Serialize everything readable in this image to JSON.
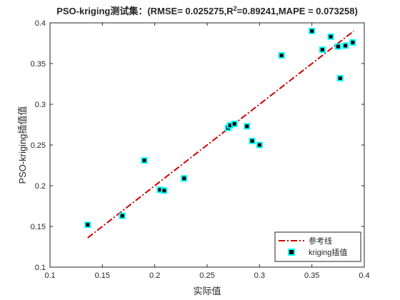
{
  "chart_data": {
    "type": "scatter",
    "title_prefix": "PSO-kriging测试集：(RMSE= 0.025275,R",
    "title_sup": "2",
    "title_suffix": "=0.89241,MAPE  = 0.073258)",
    "xlabel": "实际值",
    "ylabel": "PSO-kriging插值值",
    "xlim": [
      0.1,
      0.4
    ],
    "ylim": [
      0.1,
      0.4
    ],
    "xticks": [
      "0.1",
      "0.15",
      "0.2",
      "0.25",
      "0.3",
      "0.35",
      "0.4"
    ],
    "yticks": [
      "0.1",
      "0.15",
      "0.2",
      "0.25",
      "0.3",
      "0.35",
      "0.4"
    ],
    "grid": false,
    "legend_position": "bottom-right",
    "reference_line": {
      "name": "参考线",
      "color": "#cc0000",
      "style": "dash-dot",
      "x": [
        0.136,
        0.39
      ],
      "y": [
        0.136,
        0.39
      ]
    },
    "series": [
      {
        "name": "kriging插值",
        "marker_fill": "#000000",
        "marker_edge": "#00ffff",
        "points": [
          [
            0.136,
            0.152
          ],
          [
            0.169,
            0.163
          ],
          [
            0.19,
            0.231
          ],
          [
            0.205,
            0.195
          ],
          [
            0.209,
            0.194
          ],
          [
            0.228,
            0.209
          ],
          [
            0.27,
            0.271
          ],
          [
            0.272,
            0.274
          ],
          [
            0.276,
            0.276
          ],
          [
            0.288,
            0.273
          ],
          [
            0.293,
            0.255
          ],
          [
            0.3,
            0.25
          ],
          [
            0.321,
            0.36
          ],
          [
            0.35,
            0.39
          ],
          [
            0.36,
            0.367
          ],
          [
            0.368,
            0.383
          ],
          [
            0.375,
            0.371
          ],
          [
            0.377,
            0.332
          ],
          [
            0.382,
            0.372
          ],
          [
            0.389,
            0.376
          ]
        ]
      }
    ]
  }
}
